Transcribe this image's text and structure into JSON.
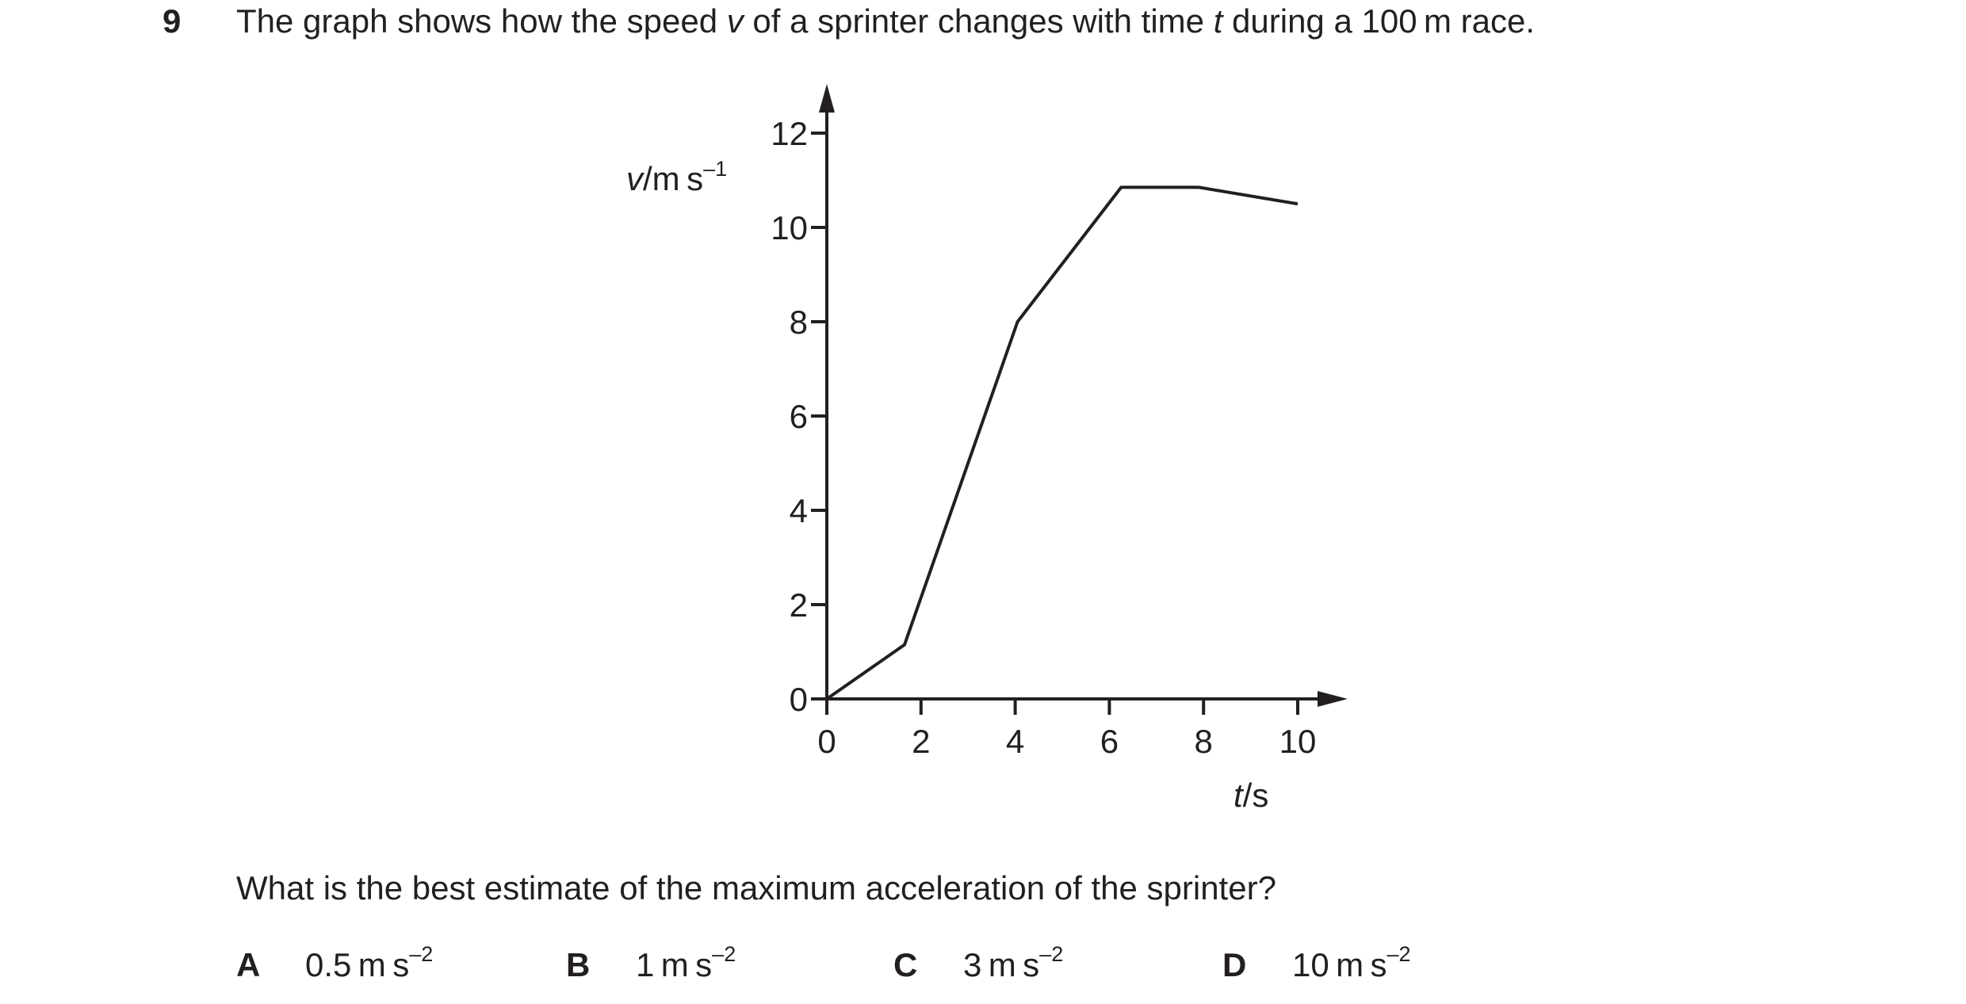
{
  "question": {
    "number": "9",
    "stem_before_v": "The graph shows how the speed ",
    "stem_v": "v",
    "stem_middle": " of a sprinter changes with time ",
    "stem_t": "t",
    "stem_after": " during a 100 m race.",
    "prompt": "What is the best estimate of the maximum acceleration of the sprinter?"
  },
  "options": [
    {
      "letter": "A",
      "value": "0.5 m s",
      "exp": "–2"
    },
    {
      "letter": "B",
      "value": "1 m s",
      "exp": "–2"
    },
    {
      "letter": "C",
      "value": "3 m s",
      "exp": "–2"
    },
    {
      "letter": "D",
      "value": "10 m s",
      "exp": "–2"
    }
  ],
  "chart_data": {
    "type": "line",
    "ylabel_var": "v",
    "ylabel_unit": "m s",
    "ylabel_exp": "–1",
    "xlabel_var": "t",
    "xlabel_unit": "s",
    "xlim": [
      0,
      10
    ],
    "ylim": [
      0,
      12
    ],
    "xticks": [
      0,
      2,
      4,
      6,
      8,
      10
    ],
    "yticks": [
      0,
      2,
      4,
      6,
      8,
      10,
      12
    ],
    "grid": false,
    "series": [
      {
        "x": [
          0,
          1.65,
          4.05,
          6.25,
          7.9,
          10.0
        ],
        "y": [
          0,
          1.15,
          8.0,
          10.85,
          10.85,
          10.5
        ]
      }
    ]
  }
}
